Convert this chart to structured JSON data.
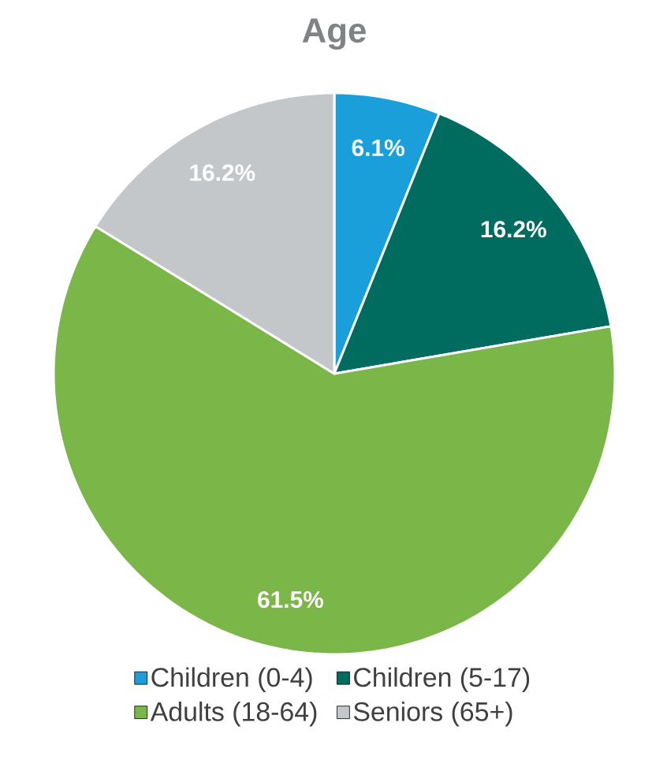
{
  "chart_data": {
    "type": "pie",
    "title": "Age",
    "categories": [
      "Children (0-4)",
      "Children (5-17)",
      "Adults (18-64)",
      "Seniors (65+)"
    ],
    "values": [
      6.1,
      16.2,
      61.5,
      16.2
    ],
    "value_labels": [
      "6.1%",
      "16.2%",
      "61.5%",
      "16.2%"
    ],
    "colors": [
      "#1a9fdb",
      "#006b5f",
      "#7ab648",
      "#c4c7c9"
    ],
    "legend": "bottom"
  }
}
